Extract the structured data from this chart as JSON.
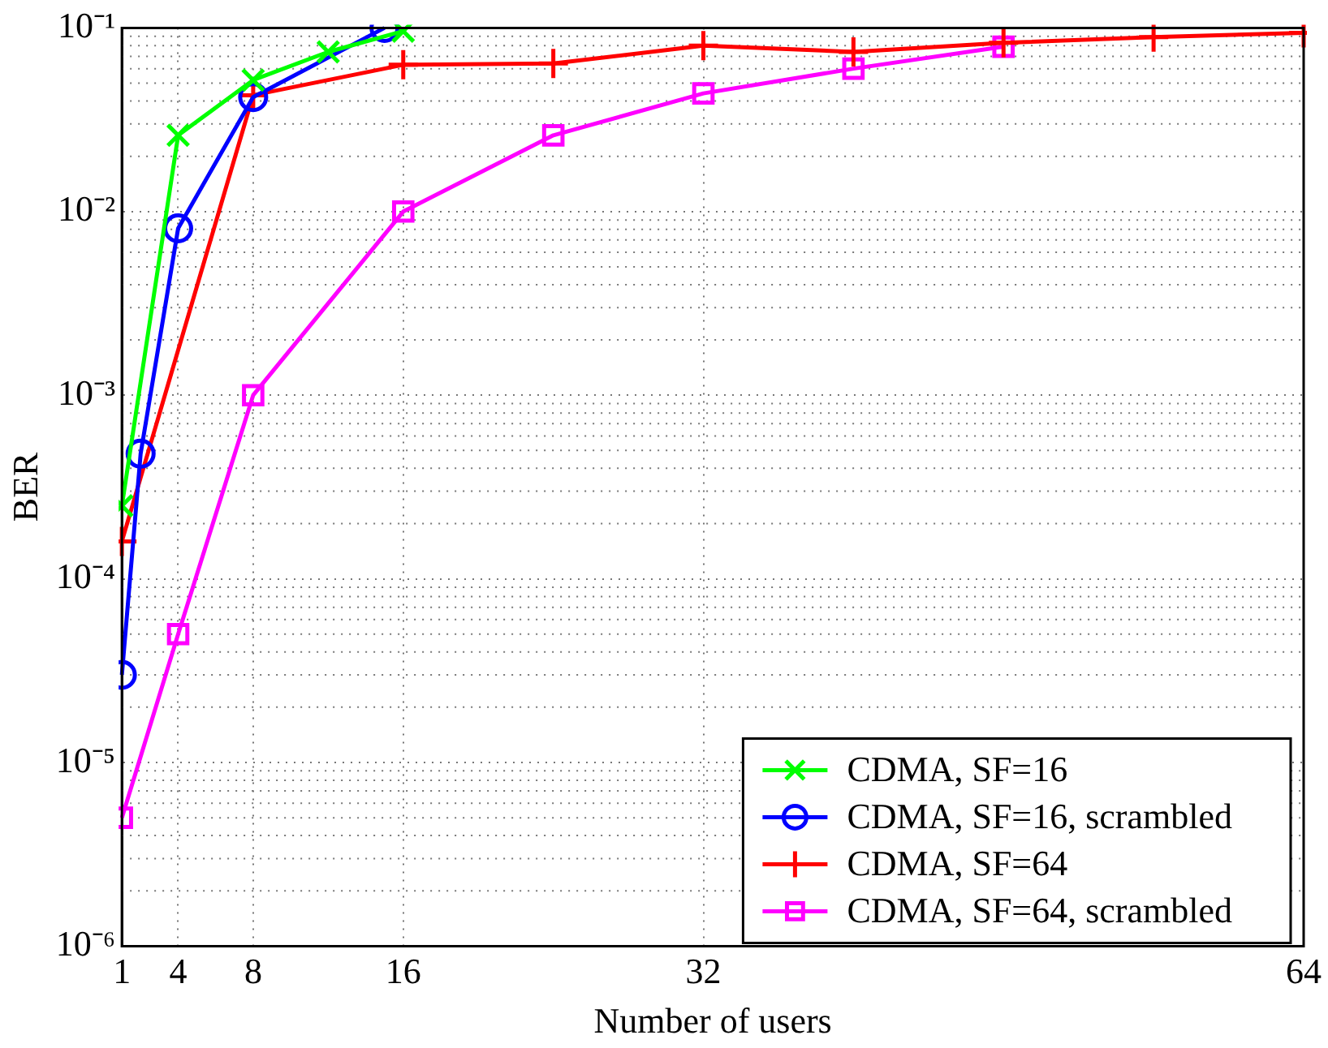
{
  "chart_data": {
    "type": "line",
    "xlabel": "Number of users",
    "ylabel": "BER",
    "log": "y",
    "grid": true,
    "legend": "bottom right",
    "line_style": "solid",
    "xlim": [
      1,
      64
    ],
    "xticks": [
      1,
      4,
      8,
      16,
      32,
      64
    ],
    "ylim": [
      1e-06,
      0.1
    ],
    "yticks": [
      {
        "value": 1e-06,
        "label": "10⁻⁶"
      },
      {
        "value": 1e-05,
        "label": "10⁻⁵"
      },
      {
        "value": 0.0001,
        "label": "10⁻⁴"
      },
      {
        "value": 0.001,
        "label": "10⁻³"
      },
      {
        "value": 0.01,
        "label": "10⁻²"
      },
      {
        "value": 0.1,
        "label": "10⁻¹"
      }
    ],
    "series": [
      {
        "name": "CDMA, SF=16",
        "color": "#00ff00",
        "marker": "cross",
        "x": [
          1,
          4,
          8,
          12,
          16
        ],
        "values": [
          0.00025,
          0.026,
          0.052,
          0.074,
          0.096
        ]
      },
      {
        "name": "CDMA, SF=16, scrambled",
        "color": "#0000ff",
        "marker": "circle",
        "x": [
          1,
          2,
          4,
          8,
          15
        ],
        "values": [
          3e-05,
          0.00048,
          0.0081,
          0.042,
          0.1
        ]
      },
      {
        "name": "CDMA, SF=64",
        "color": "#ff0000",
        "marker": "plus",
        "x": [
          1,
          8,
          16,
          24,
          32,
          40,
          48,
          56,
          64
        ],
        "values": [
          0.00016,
          0.043,
          0.063,
          0.064,
          0.08,
          0.074,
          0.083,
          0.089,
          0.094
        ]
      },
      {
        "name": "CDMA, SF=64, scrambled",
        "color": "#ff00ff",
        "marker": "square",
        "x": [
          1,
          4,
          8,
          16,
          24,
          32,
          40,
          48
        ],
        "values": [
          5e-06,
          5e-05,
          0.001,
          0.01,
          0.026,
          0.044,
          0.06,
          0.079
        ]
      }
    ]
  }
}
